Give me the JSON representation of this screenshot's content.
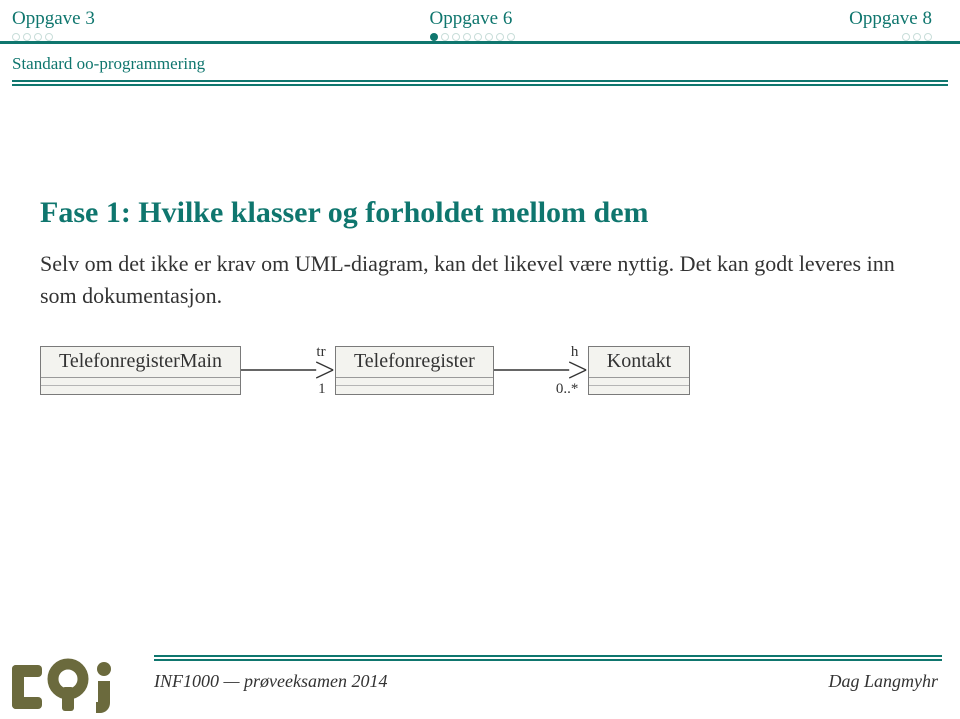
{
  "style": {
    "accent": "#0f766e",
    "text": "#333333",
    "muted_teal": "#c8ddd9",
    "dot_filled": "#0f766e",
    "dot_empty_border": "#0f766e",
    "uml_fill": "#f3f3ef",
    "logo": "#6b6a3d"
  },
  "nav": {
    "items": [
      {
        "label": "Oppgave 3",
        "dots_total": 4,
        "dots_filled": 0,
        "align": "left"
      },
      {
        "label": "Oppgave 6",
        "dots_total": 8,
        "dots_filled": 1,
        "align": "left"
      },
      {
        "label": "Oppgave 8",
        "dots_total": 3,
        "dots_filled": 0,
        "align": "right"
      }
    ]
  },
  "section_label": "Standard oo-programmering",
  "heading": "Fase 1: Hvilke klasser og forholdet mellom dem",
  "body": "Selv om det ikke er krav om UML-diagram, kan det likevel være nyttig. Det kan godt leveres inn som dokumentasjon.",
  "uml": {
    "classes": [
      {
        "name": "TelefonregisterMain"
      },
      {
        "name": "Telefonregister"
      },
      {
        "name": "Kontakt"
      }
    ],
    "assocs": [
      {
        "top_label": "tr",
        "bottom_label": "1",
        "top_right_pct": 10,
        "bottom_right_pct": 10
      },
      {
        "top_label": "h",
        "bottom_label": "0..*",
        "top_right_pct": 10,
        "bottom_right_pct": 10
      }
    ]
  },
  "footer": {
    "left": "INF1000 — prøveeksamen 2014",
    "right": "Dag Langmyhr"
  }
}
